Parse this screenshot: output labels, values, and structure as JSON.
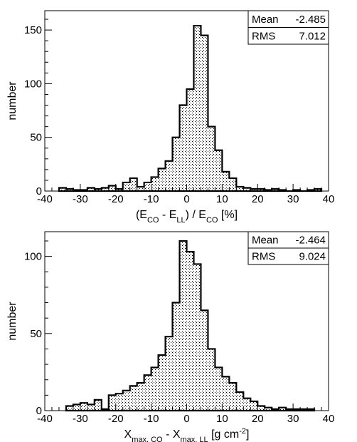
{
  "chart_data": [
    {
      "type": "histogram",
      "xlim": [
        -40,
        40
      ],
      "ylim": [
        0,
        168
      ],
      "bin_edges_start": -36,
      "bin_width": 2,
      "values": [
        3,
        2,
        1,
        1,
        3,
        2,
        3,
        5,
        2,
        8,
        12,
        4,
        8,
        13,
        21,
        28,
        50,
        80,
        95,
        154,
        145,
        60,
        38,
        18,
        12,
        4,
        3,
        2,
        2,
        1,
        2,
        1,
        0,
        1,
        0,
        1,
        2
      ],
      "xticks": [
        "-40",
        "-30",
        "-20",
        "-10",
        "0",
        "10",
        "20",
        "30",
        "40"
      ],
      "yticks": [
        "0",
        "50",
        "100",
        "150"
      ],
      "xlabel": {
        "pre": "(E",
        "sub1": "CO",
        "mid": " - E",
        "sub2": "LL",
        "mid2": ") / E",
        "sub3": "CO",
        "post": " [%]"
      },
      "ylabel": "number",
      "stats": {
        "mean_label": "Mean",
        "mean_value": "-2.485",
        "rms_label": "RMS",
        "rms_value": "7.012"
      }
    },
    {
      "type": "histogram",
      "xlim": [
        -40,
        40
      ],
      "ylim": [
        0,
        116
      ],
      "bin_edges_start": -34,
      "bin_width": 2,
      "values": [
        3,
        4,
        5,
        4,
        7,
        1,
        10,
        11,
        13,
        16,
        18,
        23,
        28,
        36,
        48,
        70,
        110,
        103,
        95,
        65,
        40,
        28,
        22,
        18,
        12,
        8,
        6,
        3,
        2,
        1,
        2,
        1,
        1,
        1,
        1
      ],
      "xticks": [
        "-40",
        "-30",
        "-20",
        "-10",
        "0",
        "10",
        "20",
        "30",
        "40"
      ],
      "yticks": [
        "0",
        "50",
        "100"
      ],
      "xlabel": {
        "pre": "X",
        "sub1": "max, CO",
        "mid": " - X",
        "sub2": "max, LL",
        "post": " [g cm",
        "sup": "-2",
        "end": "]"
      },
      "ylabel": "number",
      "stats": {
        "mean_label": "Mean",
        "mean_value": "-2.464",
        "rms_label": "RMS",
        "rms_value": "9.024"
      }
    }
  ]
}
